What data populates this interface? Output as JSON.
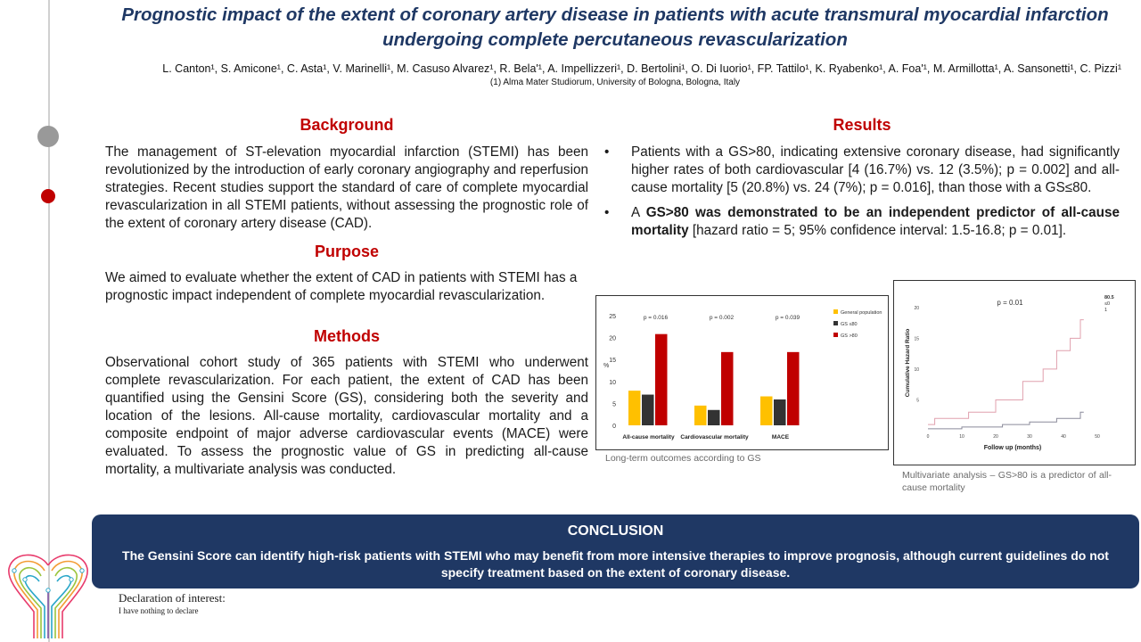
{
  "title": "Prognostic impact of the extent of coronary artery disease in patients with acute transmural myocardial infarction undergoing complete percutaneous revascularization",
  "authors": "L. Canton¹, S. Amicone¹, C. Asta¹, V. Marinelli¹, M. Casuso Alvarez¹, R. Bela'¹, A. Impellizzeri¹, D. Bertolini¹, O. Di Iuorio¹, FP. Tattilo¹, K. Ryabenko¹, A. Foa'¹, M. Armillotta¹, A. Sansonetti¹, C. Pizzi¹",
  "affiliation": "(1) Alma Mater Studiorum, University of Bologna, Bologna, Italy",
  "background": {
    "heading": "Background",
    "text": "The management of ST-elevation myocardial infarction (STEMI) has been revolutionized by the introduction of early coronary angiography and reperfusion strategies. Recent studies support the standard of care of complete myocardial revascularization in all STEMI patients, without assessing the prognostic role of the extent of coronary artery disease (CAD)."
  },
  "purpose": {
    "heading": "Purpose",
    "text": "We aimed to evaluate whether the extent of CAD in patients with STEMI has a prognostic impact independent of complete myocardial revascularization."
  },
  "methods": {
    "heading": "Methods",
    "text": "Observational cohort study of 365 patients with STEMI who underwent complete revascularization. For each patient, the extent of CAD has been quantified using the Gensini Score (GS), considering both the severity and location of the lesions. All-cause mortality, cardiovascular mortality and a composite endpoint of major adverse cardiovascular events (MACE) were evaluated. To assess the prognostic value of GS in predicting all-cause mortality, a multivariate analysis was conducted."
  },
  "results": {
    "heading": "Results",
    "bullet1": "Patients with a GS>80, indicating extensive coronary disease, had significantly higher rates of both cardiovascular [4 (16.7%) vs. 12 (3.5%); p = 0.002] and all-cause mortality [5 (20.8%) vs. 24 (7%); p = 0.016], than those with a GS≤80.",
    "bullet2_pre": "A ",
    "bullet2_bold": "GS>80 was demonstrated to be an independent predictor of all-cause mortality",
    "bullet2_post": " [hazard ratio = 5; 95% confidence interval: 1.5-16.8; p = 0.01]."
  },
  "chart_data": [
    {
      "type": "bar",
      "ylabel": "%",
      "ylim": [
        0,
        25
      ],
      "yticks": [
        0,
        5,
        10,
        15,
        20,
        25
      ],
      "categories": [
        "All-cause mortality",
        "Cardiovascular mortality",
        "MACE"
      ],
      "pvalues": [
        "p = 0.016",
        "p = 0.002",
        "p = 0.039"
      ],
      "series": [
        {
          "name": "General population",
          "color": "#ffc000",
          "values": [
            7.9,
            4.5,
            6.6
          ]
        },
        {
          "name": "GS ≤80",
          "color": "#333333",
          "values": [
            7.0,
            3.5,
            5.9
          ]
        },
        {
          "name": "GS >80",
          "color": "#c00000",
          "values": [
            20.8,
            16.7,
            16.7
          ]
        }
      ],
      "legend_position": "right",
      "caption": "Long-term outcomes according to GS"
    },
    {
      "type": "line",
      "xlabel": "Follow up (months)",
      "ylabel": "Cumulative Hazard Ratio",
      "xlim": [
        0,
        50
      ],
      "ylim": [
        0,
        22
      ],
      "xticks": [
        0,
        10,
        20,
        30,
        40,
        50
      ],
      "yticks": [
        5,
        10,
        15,
        20
      ],
      "annotation": "p = 0.01",
      "legend": [
        "80.5",
        "≤0",
        "1"
      ],
      "series": [
        {
          "name": "GS >80",
          "color": "#e0a0ae",
          "x": [
            0,
            2,
            2,
            12,
            12,
            20,
            20,
            28,
            28,
            34,
            34,
            38,
            38,
            42,
            42,
            45,
            45,
            46
          ],
          "y": [
            1,
            1,
            2,
            2,
            3,
            3,
            5,
            5,
            8,
            8,
            10,
            10,
            13,
            13,
            15,
            15,
            18,
            18
          ]
        },
        {
          "name": "GS ≤80",
          "color": "#8a8a9a",
          "x": [
            0,
            10,
            10,
            22,
            22,
            30,
            30,
            38,
            38,
            45,
            45,
            46
          ],
          "y": [
            0.3,
            0.3,
            0.6,
            0.6,
            1.0,
            1.0,
            1.4,
            1.4,
            2.0,
            2.0,
            3.0,
            3.0
          ]
        }
      ],
      "caption": "Multivariate analysis – GS>80 is a predictor of all-cause mortality"
    }
  ],
  "conclusion": {
    "heading": "CONCLUSION",
    "text": "The Gensini Score can identify high-risk patients with STEMI who may benefit from more intensive therapies to improve prognosis, although current guidelines do not specify treatment based on the extent of coronary disease."
  },
  "declaration": {
    "heading": "Declaration of interest:",
    "text": "I have nothing to declare"
  },
  "colors": {
    "title_blue": "#1f3864",
    "section_red": "#c00000",
    "conclusion_bg": "#1f3864",
    "dot_gray": "#999999",
    "dot_red": "#c00000"
  },
  "icons": {
    "logo": "heart-circuit-logo"
  }
}
